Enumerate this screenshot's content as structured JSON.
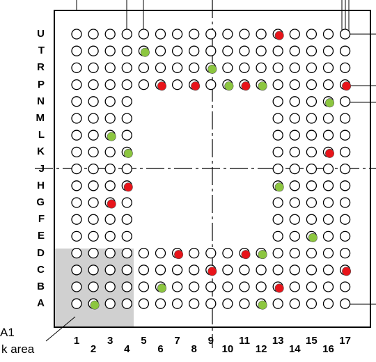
{
  "rows": [
    "U",
    "T",
    "R",
    "P",
    "N",
    "M",
    "L",
    "K",
    "J",
    "H",
    "G",
    "F",
    "E",
    "D",
    "C",
    "B",
    "A"
  ],
  "columns": [
    "1",
    "2",
    "3",
    "4",
    "5",
    "6",
    "7",
    "8",
    "9",
    "10",
    "11",
    "12",
    "13",
    "14",
    "15",
    "16",
    "17"
  ],
  "corner_label": {
    "line1": "A1",
    "line2": "k area"
  },
  "colors": {
    "red": "#e8141a",
    "green": "#8cc63f",
    "shade": "#d0d0d0",
    "line": "#000000"
  },
  "balls": {
    "U": "FFFFFFFFFFFFRFFFF",
    "T": "FFFFGFFFFFFFFFFFF",
    "R": "FFFFFFFFGFFFFFFFF",
    "P": "FFFFFRFRFGRGFFFFR",
    "N": "FFFF--------FFFGF",
    "M": "FFFF--------FFFFF",
    "L": "FFGF--------FFFFF",
    "K": "FFFG--------FFFRF",
    "J": "FFFF--------FFFFF",
    "H": "FFFR--------GFFFF",
    "G": "FFRF--------FFFFF",
    "F": "FFFF--------FFFFF",
    "E": "FFFF--------FFGFF",
    "D": "FFFFFFRFFFRGFFFFF",
    "C": "FFFFFFFFRFFFFFFFR",
    "B": "FFFFFGFFFFFFRFFFF",
    "A": "FGFFFFFFFFFGFFFFF"
  }
}
